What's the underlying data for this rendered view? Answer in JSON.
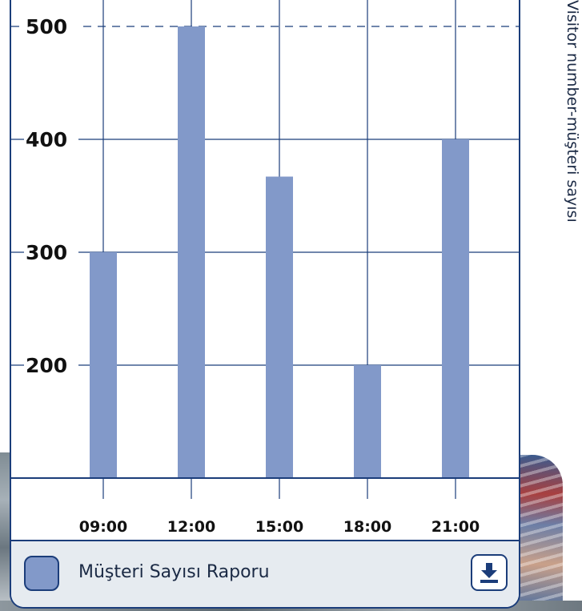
{
  "chart_data": {
    "type": "bar",
    "title": "",
    "xlabel": "",
    "ylabel": "Visitor number-müşteri sayısı",
    "categories": [
      "09:00",
      "12:00",
      "15:00",
      "18:00",
      "21:00"
    ],
    "series": [
      {
        "name": "Müşteri Sayısı Raporu",
        "values": [
          300,
          500,
          367,
          200,
          400
        ]
      }
    ],
    "y_ticks": [
      "200",
      "300",
      "400",
      "500"
    ],
    "ylim": [
      100,
      500
    ],
    "reference_line": 500,
    "grid": true,
    "legend_position": "bottom",
    "colors": {
      "bar": "#8299c9",
      "grid": "#1b3d7a",
      "frame": "#1b3d7a",
      "legend_bg": "#e6ebf0"
    }
  },
  "legend": {
    "label": "Müşteri Sayısı Raporu"
  },
  "toolbar": {
    "download_icon": "download-icon"
  }
}
